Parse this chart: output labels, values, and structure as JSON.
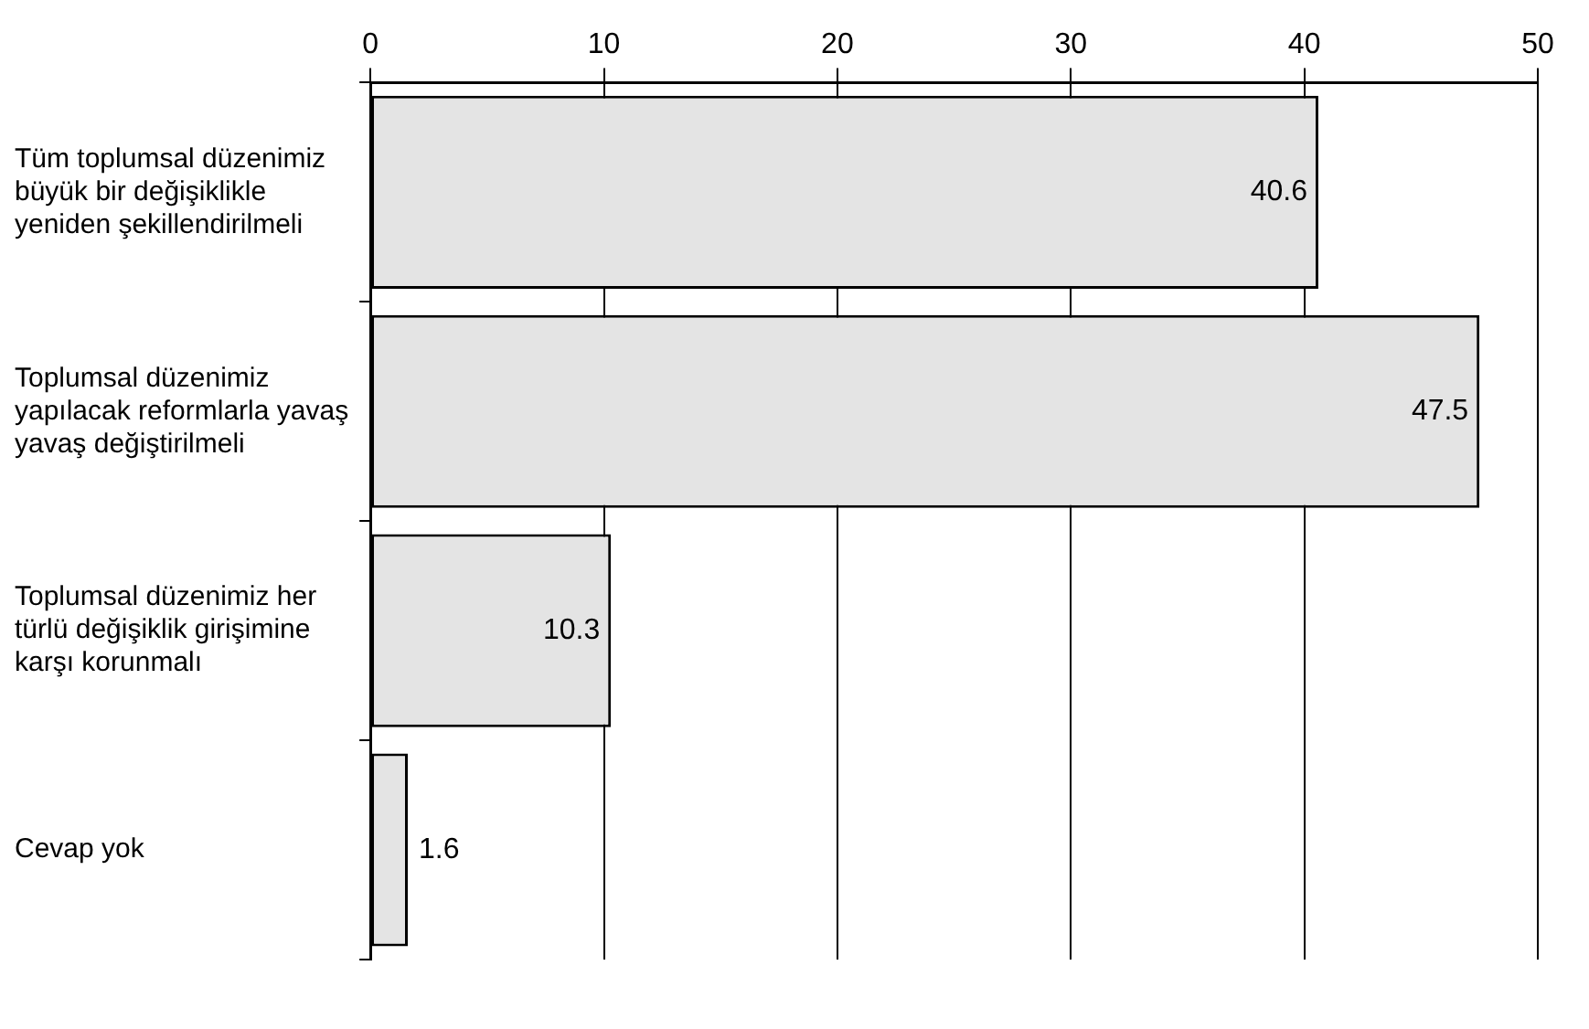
{
  "chart_data": {
    "type": "bar",
    "orientation": "horizontal",
    "categories": [
      "Tüm toplumsal düzenimiz büyük bir değişiklikle yeniden şekillendirilmeli",
      "Toplumsal düzenimiz yapılacak reformlarla yavaş yavaş değiştirilmeli",
      "Toplumsal düzenimiz her türlü değişiklik girişimine karşı korunmalı",
      "Cevap yok"
    ],
    "values": [
      40.6,
      47.5,
      10.3,
      1.6
    ],
    "color": "#e4e4e4",
    "xlim": [
      0,
      50
    ],
    "xticks": [
      0,
      10,
      20,
      30,
      40,
      50
    ],
    "grid": "x",
    "data_labels": true,
    "legend": false
  }
}
